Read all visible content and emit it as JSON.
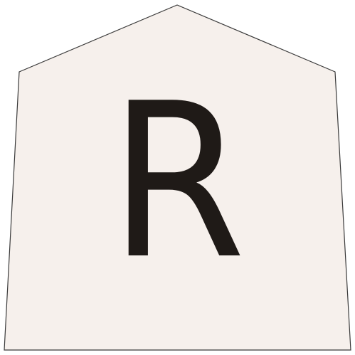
{
  "piece": {
    "letter": "R",
    "fill_color": "#f6f0ec",
    "border_color": "#3a3a3a",
    "text_color": "#1f1a17"
  }
}
